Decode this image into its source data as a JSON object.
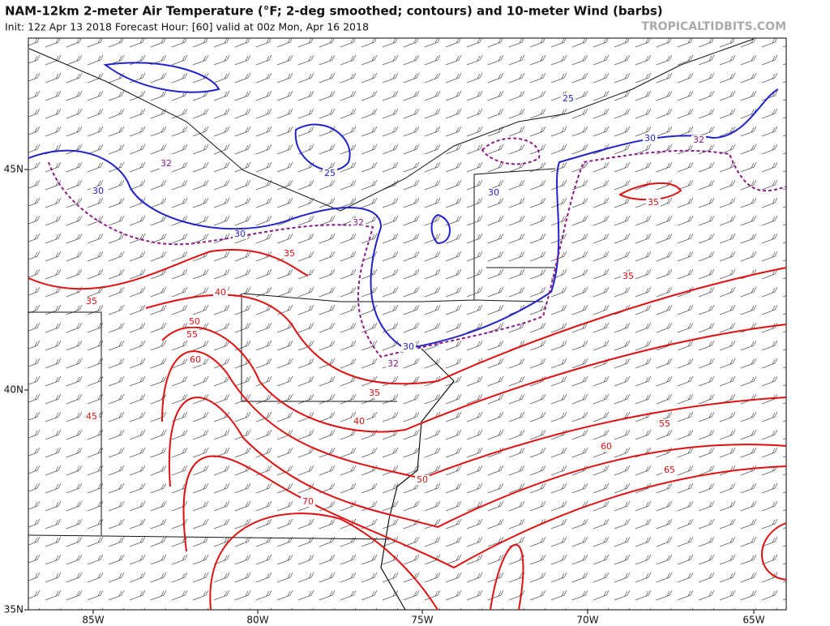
{
  "header": {
    "title": "NAM-12km 2-meter Air Temperature (°F; 2-deg smoothed; contours) and 10-meter Wind (barbs)",
    "subtitle": "Init: 12z Apr 13 2018   Forecast Hour: [60]   valid at 00z Mon, Apr 16 2018",
    "watermark": "TROPICALTIDBITS.COM"
  },
  "map": {
    "longitude_labels": [
      "85W",
      "80W",
      "75W",
      "70W",
      "65W"
    ],
    "latitude_labels": [
      "45N",
      "40N",
      "35N"
    ],
    "contour_labels": [
      {
        "value": 25,
        "color": "#2222cc"
      },
      {
        "value": 25,
        "color": "#2222cc"
      },
      {
        "value": 30,
        "color": "#2222cc"
      },
      {
        "value": 30,
        "color": "#2222cc"
      },
      {
        "value": 30,
        "color": "#2222cc"
      },
      {
        "value": 30,
        "color": "#2222cc"
      },
      {
        "value": 30,
        "color": "#2222cc"
      },
      {
        "value": 32,
        "color": "#8a1a8a"
      },
      {
        "value": 32,
        "color": "#8a1a8a"
      },
      {
        "value": 32,
        "color": "#8a1a8a"
      },
      {
        "value": 32,
        "color": "#8a1a8a"
      },
      {
        "value": 35,
        "color": "#e01010"
      },
      {
        "value": 35,
        "color": "#e01010"
      },
      {
        "value": 35,
        "color": "#e01010"
      },
      {
        "value": 35,
        "color": "#e01010"
      },
      {
        "value": 35,
        "color": "#e01010"
      },
      {
        "value": 40,
        "color": "#e01010"
      },
      {
        "value": 40,
        "color": "#e01010"
      },
      {
        "value": 45,
        "color": "#e01010"
      },
      {
        "value": 50,
        "color": "#e01010"
      },
      {
        "value": 55,
        "color": "#e01010"
      },
      {
        "value": 60,
        "color": "#e01010"
      },
      {
        "value": 50,
        "color": "#e01010"
      },
      {
        "value": 55,
        "color": "#e01010"
      },
      {
        "value": 60,
        "color": "#e01010"
      },
      {
        "value": 65,
        "color": "#e01010"
      },
      {
        "value": 70,
        "color": "#e01010"
      }
    ]
  }
}
